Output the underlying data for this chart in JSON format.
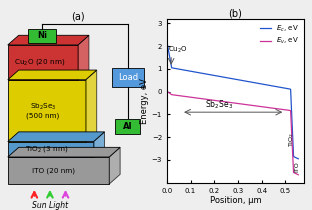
{
  "title_a": "(a)",
  "title_b": "(b)",
  "ni_label": "Ni",
  "al_label": "Al",
  "load_label": "Load",
  "ni_color": "#33bb33",
  "al_color": "#33bb33",
  "load_color": "#5599dd",
  "xlabel": "Position, μm",
  "ylabel": "Energy, eV",
  "ylim": [
    -4,
    3.2
  ],
  "xlim": [
    0,
    0.58
  ],
  "xticks": [
    0.0,
    0.1,
    0.2,
    0.3,
    0.4,
    0.5
  ],
  "yticks": [
    -3,
    -2,
    -1,
    0,
    1,
    2,
    3
  ],
  "ec_color": "#2255cc",
  "ev_color": "#cc3399",
  "ec_label": "$E_c$, eV",
  "ev_label": "$E_v$, eV",
  "sun_colors": [
    "#ff2222",
    "#33cc33",
    "#dd44dd"
  ],
  "bg_color": "#eeeeee"
}
